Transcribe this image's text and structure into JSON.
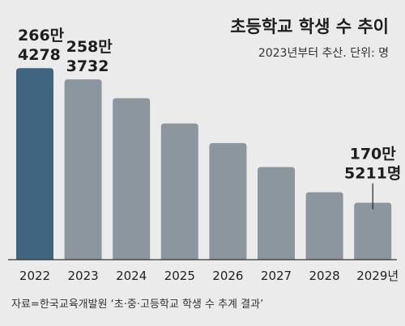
{
  "chart_data": {
    "type": "bar",
    "title": "초등학교 학생 수 추이",
    "subtitle": "2023년부터 추산. 단위: 명",
    "categories": [
      "2022",
      "2023",
      "2024",
      "2025",
      "2026",
      "2027",
      "2028",
      "2029년"
    ],
    "values": [
      2664278,
      2583732,
      2450000,
      2270000,
      2130000,
      1960000,
      1780000,
      1705211
    ],
    "value_labels": [
      {
        "index": 0,
        "line1": "266만",
        "line2": "4278"
      },
      {
        "index": 1,
        "line1": "258만",
        "line2": "3732"
      },
      {
        "index": 7,
        "line1": "170만",
        "line2": "5211명"
      }
    ],
    "ylim": [
      1300000,
      2700000
    ],
    "grid": false,
    "highlight_index": 0,
    "colors": {
      "background": "#ebebeb",
      "bar": "#8c969e",
      "highlight_bar": "#3f6580",
      "axis": "#333333",
      "text": "#1e1e1e"
    },
    "source": "자료=한국교육개발원 ‘초·중·고등학교 학생 수 추계 결과’"
  }
}
